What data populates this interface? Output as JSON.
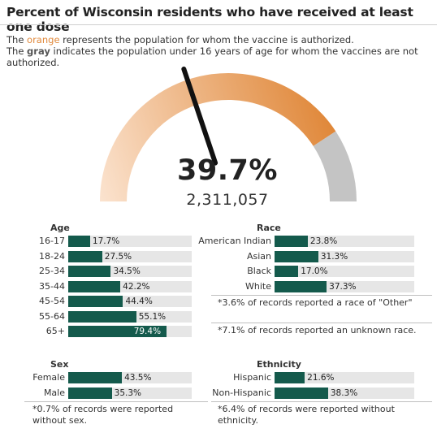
{
  "title": "Percent of Wisconsin residents who have received at least one dose",
  "legend": {
    "line1_pre": "The ",
    "line1_key": "orange",
    "line1_post": " represents the population for whom the vaccine is authorized.",
    "line2_pre": "The ",
    "line2_key": "gray",
    "line2_post": " indicates the population under 16 years of age for whom the vaccines are not authorized."
  },
  "colors": {
    "authorized_light": "#fbe3cf",
    "authorized_dark": "#e0883a",
    "not_authorized": "#c4c4c4",
    "bar": "#145a4c",
    "track": "#e6e6e6",
    "needle": "#111111"
  },
  "gauge": {
    "percent_label": "39.7%",
    "count_label": "2,311,057",
    "value": 39.7,
    "authorized_share": 81.6
  },
  "chart_data": [
    {
      "type": "bar",
      "title": "Age",
      "categories": [
        "16-17",
        "18-24",
        "25-34",
        "35-44",
        "45-54",
        "55-64",
        "65+"
      ],
      "values": [
        17.7,
        27.5,
        34.5,
        42.2,
        44.4,
        55.1,
        79.4
      ],
      "labels": [
        "17.7%",
        "27.5%",
        "34.5%",
        "42.2%",
        "44.4%",
        "55.1%",
        "79.4%"
      ],
      "xlim": [
        0,
        100
      ]
    },
    {
      "type": "bar",
      "title": "Race",
      "categories": [
        "American Indian",
        "Asian",
        "Black",
        "White"
      ],
      "values": [
        23.8,
        31.3,
        17.0,
        37.3
      ],
      "labels": [
        "23.8%",
        "31.3%",
        "17.0%",
        "37.3%"
      ],
      "xlim": [
        0,
        100
      ],
      "notes": [
        "*3.6% of records reported a race of \"Other\"",
        "*7.1% of records reported an unknown race."
      ]
    },
    {
      "type": "bar",
      "title": "Sex",
      "categories": [
        "Female",
        "Male"
      ],
      "values": [
        43.5,
        35.3
      ],
      "labels": [
        "43.5%",
        "35.3%"
      ],
      "xlim": [
        0,
        100
      ],
      "notes": [
        "*0.7% of records were reported without sex."
      ]
    },
    {
      "type": "bar",
      "title": "Ethnicity",
      "categories": [
        "Hispanic",
        "Non-Hispanic"
      ],
      "values": [
        21.6,
        38.3
      ],
      "labels": [
        "21.6%",
        "38.3%"
      ],
      "xlim": [
        0,
        100
      ],
      "notes": [
        "*6.4% of records were reported without ethnicity."
      ]
    }
  ]
}
